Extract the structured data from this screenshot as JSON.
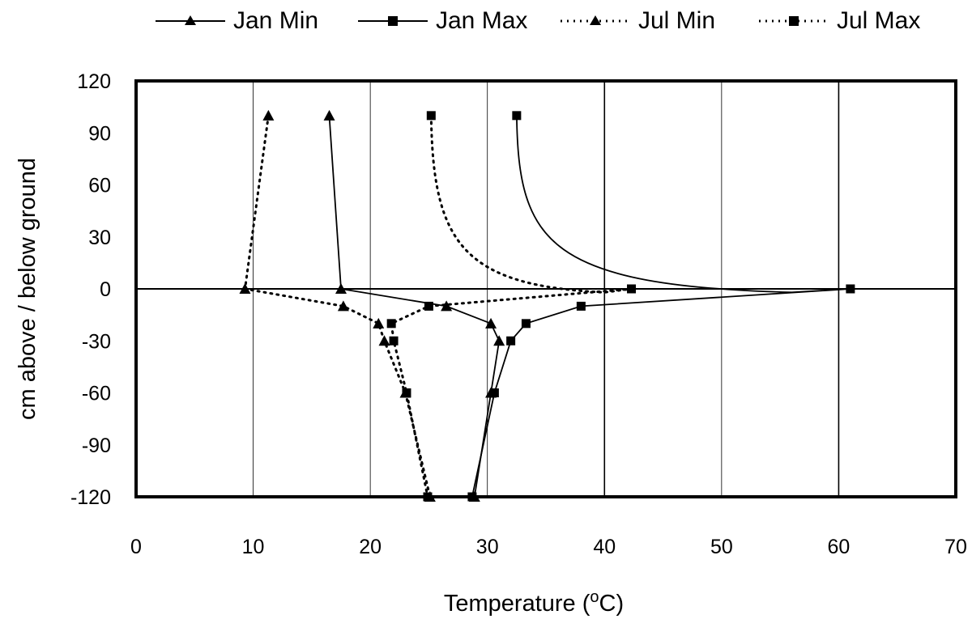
{
  "chart_data": {
    "type": "line",
    "title": "",
    "xlabel": "Temperature (",
    "xlabel_sup": "o",
    "xlabel_unit": "C)",
    "ylabel": "cm above / below ground",
    "xlim": [
      0,
      70
    ],
    "ylim": [
      -120,
      120
    ],
    "x_ticks": [
      "0",
      "10",
      "20",
      "30",
      "40",
      "50",
      "60",
      "70"
    ],
    "y_ticks": [
      "120",
      "90",
      "60",
      "30",
      "0",
      "-30",
      "-60",
      "-90",
      "-120"
    ],
    "grid": "vertical",
    "legend": "top",
    "series": [
      {
        "name": "Jan Min",
        "marker": "triangle",
        "dash": "solid",
        "points": [
          {
            "x": 16.5,
            "y": 100
          },
          {
            "x": 17.5,
            "y": 0
          },
          {
            "x": 26.5,
            "y": -10
          },
          {
            "x": 30.3,
            "y": -20
          },
          {
            "x": 31.0,
            "y": -30
          },
          {
            "x": 30.3,
            "y": -60
          },
          {
            "x": 28.9,
            "y": -120
          }
        ]
      },
      {
        "name": "Jan Max",
        "marker": "square",
        "dash": "solid",
        "points": [
          {
            "x": 32.5,
            "y": 100
          },
          {
            "x": 56.0,
            "y": -2
          },
          {
            "x": 61.0,
            "y": 0
          },
          {
            "x": 38.0,
            "y": -10
          },
          {
            "x": 33.3,
            "y": -20
          },
          {
            "x": 32.0,
            "y": -30
          },
          {
            "x": 30.6,
            "y": -60
          },
          {
            "x": 28.7,
            "y": -120
          }
        ]
      },
      {
        "name": "Jul Min",
        "marker": "triangle",
        "dash": "dotted",
        "points": [
          {
            "x": 11.3,
            "y": 100
          },
          {
            "x": 9.3,
            "y": 0
          },
          {
            "x": 17.7,
            "y": -10
          },
          {
            "x": 20.7,
            "y": -20
          },
          {
            "x": 21.2,
            "y": -30
          },
          {
            "x": 23.0,
            "y": -60
          },
          {
            "x": 25.1,
            "y": -120
          }
        ]
      },
      {
        "name": "Jul Max",
        "marker": "square",
        "dash": "dotted",
        "points": [
          {
            "x": 25.2,
            "y": 100
          },
          {
            "x": 40.0,
            "y": -2
          },
          {
            "x": 42.3,
            "y": 0
          },
          {
            "x": 25.0,
            "y": -10
          },
          {
            "x": 21.8,
            "y": -20
          },
          {
            "x": 22.0,
            "y": -30
          },
          {
            "x": 23.1,
            "y": -60
          },
          {
            "x": 24.9,
            "y": -120
          }
        ]
      }
    ]
  }
}
